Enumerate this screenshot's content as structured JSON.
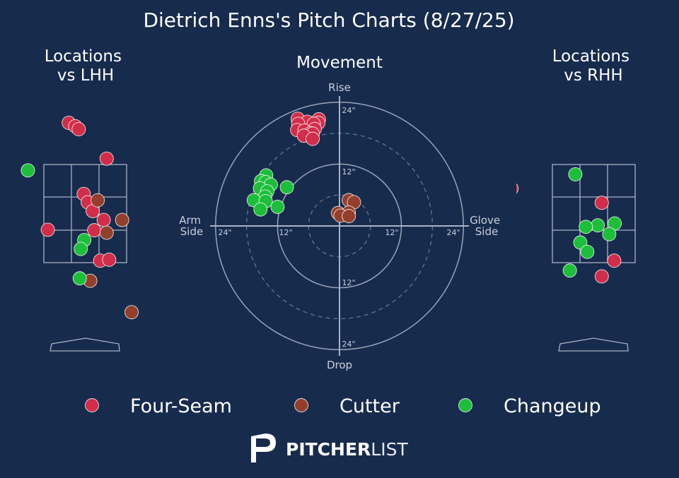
{
  "title": "Dietrich Enns's Pitch Charts (8/27/25)",
  "colors": {
    "background": "#172b4d",
    "Four-Seam": "#d22d49",
    "Cutter": "#933f2c",
    "Changeup": "#1dbe3a",
    "grid": "#a9b2c4",
    "text": "#ffffff",
    "subtext": "#c8cfdb"
  },
  "brand": {
    "logo_word_bold": "PITCHER",
    "logo_word_light": "LIST"
  },
  "legend": [
    {
      "label": "Four-Seam",
      "color": "#d22d49"
    },
    {
      "label": "Cutter",
      "color": "#933f2c"
    },
    {
      "label": "Changeup",
      "color": "#1dbe3a"
    }
  ],
  "chart_data": [
    {
      "type": "scatter",
      "title": "Locations\nvs LHH",
      "x_units": "ft from plate center (catcher view)",
      "y_units": "ft above ground",
      "strike_zone": {
        "x": [
          -0.83,
          0.83
        ],
        "y": [
          1.5,
          3.5
        ]
      },
      "series": [
        {
          "name": "Four-Seam",
          "points": [
            [
              -0.33,
              4.35
            ],
            [
              -0.2,
              4.28
            ],
            [
              -0.13,
              4.22
            ],
            [
              0.43,
              3.62
            ],
            [
              -0.03,
              2.9
            ],
            [
              0.05,
              2.73
            ],
            [
              0.15,
              2.55
            ],
            [
              0.37,
              2.37
            ],
            [
              -0.75,
              2.17
            ],
            [
              0.18,
              2.16
            ],
            [
              0.3,
              1.54
            ],
            [
              0.48,
              1.56
            ]
          ]
        },
        {
          "name": "Cutter",
          "points": [
            [
              0.25,
              2.77
            ],
            [
              0.74,
              2.37
            ],
            [
              0.43,
              2.11
            ],
            [
              0.1,
              1.13
            ],
            [
              0.93,
              0.49
            ]
          ]
        },
        {
          "name": "Changeup",
          "points": [
            [
              -1.15,
              3.38
            ],
            [
              -0.02,
              1.96
            ],
            [
              -0.09,
              1.78
            ],
            [
              -0.11,
              1.18
            ]
          ]
        }
      ]
    },
    {
      "type": "scatter",
      "title": "Movement",
      "x_units": "inches (arm side negative, glove side positive)",
      "y_units": "inches (rise positive)",
      "axis_labels": {
        "top": "Rise",
        "bottom": "Drop",
        "left": "Arm\nSide",
        "right": "Glove\nSide"
      },
      "rings": [
        6,
        12,
        18,
        24
      ],
      "ring_labels": [
        "24\"",
        "12\"",
        "12\"",
        "24\""
      ],
      "series": [
        {
          "name": "Four-Seam",
          "points": [
            [
              -8.1,
              20.8
            ],
            [
              -4.0,
              20.7
            ],
            [
              -6.2,
              20.2
            ],
            [
              -4.1,
              20.0
            ],
            [
              -8.0,
              19.8
            ],
            [
              -5.0,
              19.8
            ],
            [
              -4.8,
              18.8
            ],
            [
              -8.2,
              18.6
            ],
            [
              -6.8,
              18.5
            ],
            [
              -5.6,
              18.0
            ],
            [
              -5.2,
              17.9
            ],
            [
              -6.9,
              17.5
            ],
            [
              -5.2,
              16.9
            ]
          ]
        },
        {
          "name": "Cutter",
          "points": [
            [
              1.8,
              5.0
            ],
            [
              2.8,
              4.6
            ],
            [
              -0.3,
              2.5
            ],
            [
              1.8,
              2.6
            ],
            [
              0.2,
              2.0
            ],
            [
              1.8,
              1.9
            ]
          ]
        },
        {
          "name": "Changeup",
          "points": [
            [
              -14.2,
              9.8
            ],
            [
              -15.2,
              8.7
            ],
            [
              -14.3,
              8.5
            ],
            [
              -13.3,
              8.0
            ],
            [
              -10.2,
              7.5
            ],
            [
              -15.4,
              7.3
            ],
            [
              -14.0,
              6.7
            ],
            [
              -14.4,
              5.7
            ],
            [
              -16.6,
              5.0
            ],
            [
              -14.3,
              4.8
            ],
            [
              -12.0,
              3.7
            ],
            [
              -15.3,
              3.2
            ]
          ]
        }
      ]
    },
    {
      "type": "scatter",
      "title": "Locations\nvs RHH",
      "x_units": "ft from plate center (catcher view)",
      "y_units": "ft above ground",
      "strike_zone": {
        "x": [
          -0.83,
          0.83
        ],
        "y": [
          1.5,
          3.5
        ]
      },
      "series": [
        {
          "name": "Four-Seam",
          "points": [
            [
              -1.65,
              3.01
            ],
            [
              0.16,
              2.72
            ],
            [
              0.41,
              1.54
            ],
            [
              0.16,
              1.22
            ]
          ]
        },
        {
          "name": "Changeup",
          "points": [
            [
              -0.37,
              3.3
            ],
            [
              0.42,
              2.3
            ],
            [
              0.08,
              2.26
            ],
            [
              -0.16,
              2.23
            ],
            [
              0.31,
              2.08
            ],
            [
              -0.27,
              1.91
            ],
            [
              -0.13,
              1.72
            ],
            [
              -0.48,
              1.34
            ]
          ]
        }
      ]
    }
  ]
}
